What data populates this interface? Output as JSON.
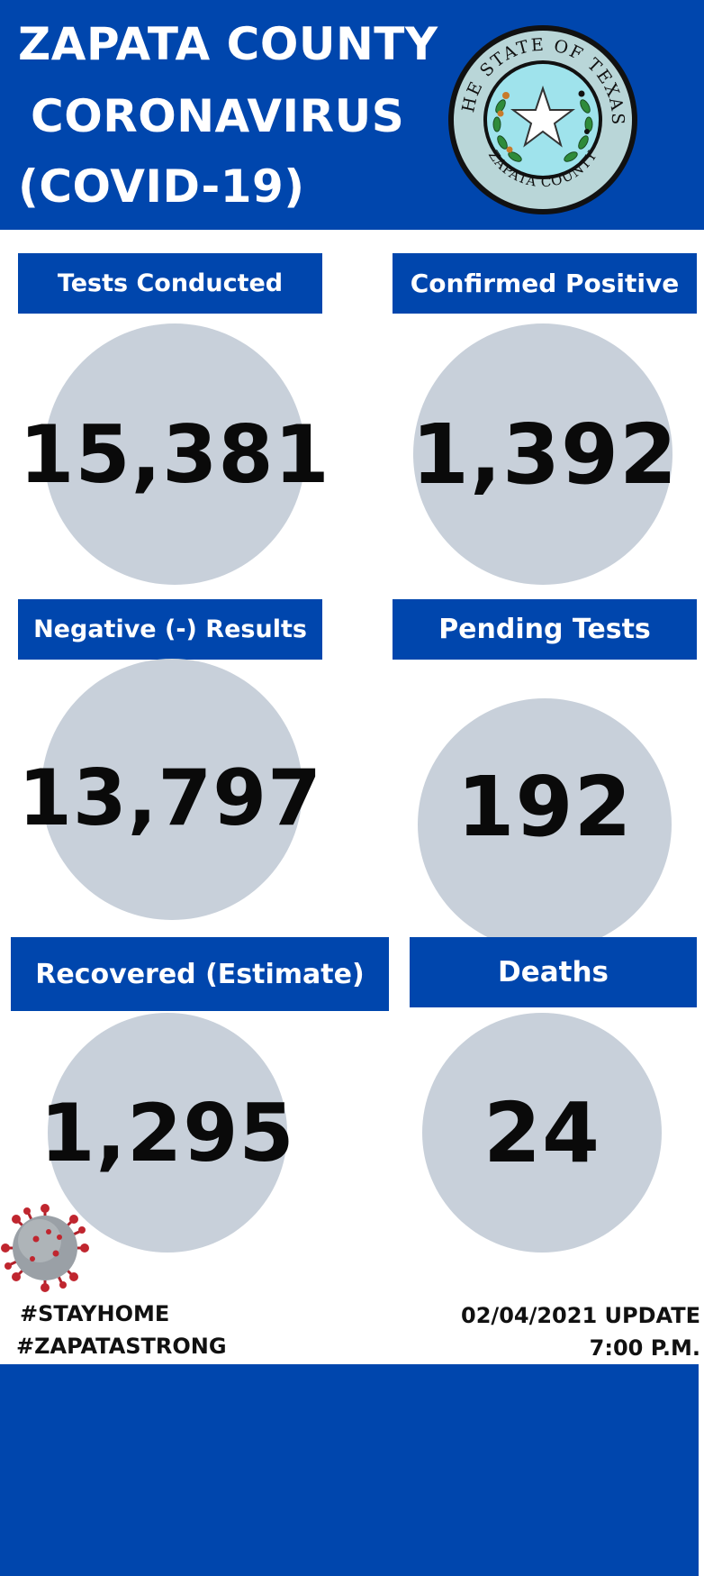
{
  "header": {
    "line1": "ZAPATA COUNTY",
    "line2": "CORONAVIRUS",
    "line3": "(COVID-19)",
    "seal": {
      "top_text": "THE STATE OF TEXAS",
      "bottom_text": "ZAPATA COUNTY",
      "icon": "texas-state-seal-icon"
    }
  },
  "stats": {
    "tests_conducted": {
      "label": "Tests Conducted",
      "value": "15,381"
    },
    "confirmed_positive": {
      "label": "Confirmed Positive",
      "value": "1,392"
    },
    "negative_results": {
      "label": "Negative (-) Results",
      "value": "13,797"
    },
    "pending_tests": {
      "label": "Pending Tests",
      "value": "192"
    },
    "recovered": {
      "label": "Recovered (Estimate)",
      "value": "1,295"
    },
    "deaths": {
      "label": "Deaths",
      "value": "24"
    }
  },
  "footer": {
    "hashtag1": "#STAYHOME",
    "hashtag2": "#ZAPATASTRONG",
    "update_date": "02/04/2021 UPDATE",
    "update_time": "7:00 P.M.",
    "virus_icon": "coronavirus-icon"
  },
  "colors": {
    "brand_blue": "#0046ad",
    "circle_gray": "#c8d0da",
    "text_dark": "#0a0a0a"
  }
}
